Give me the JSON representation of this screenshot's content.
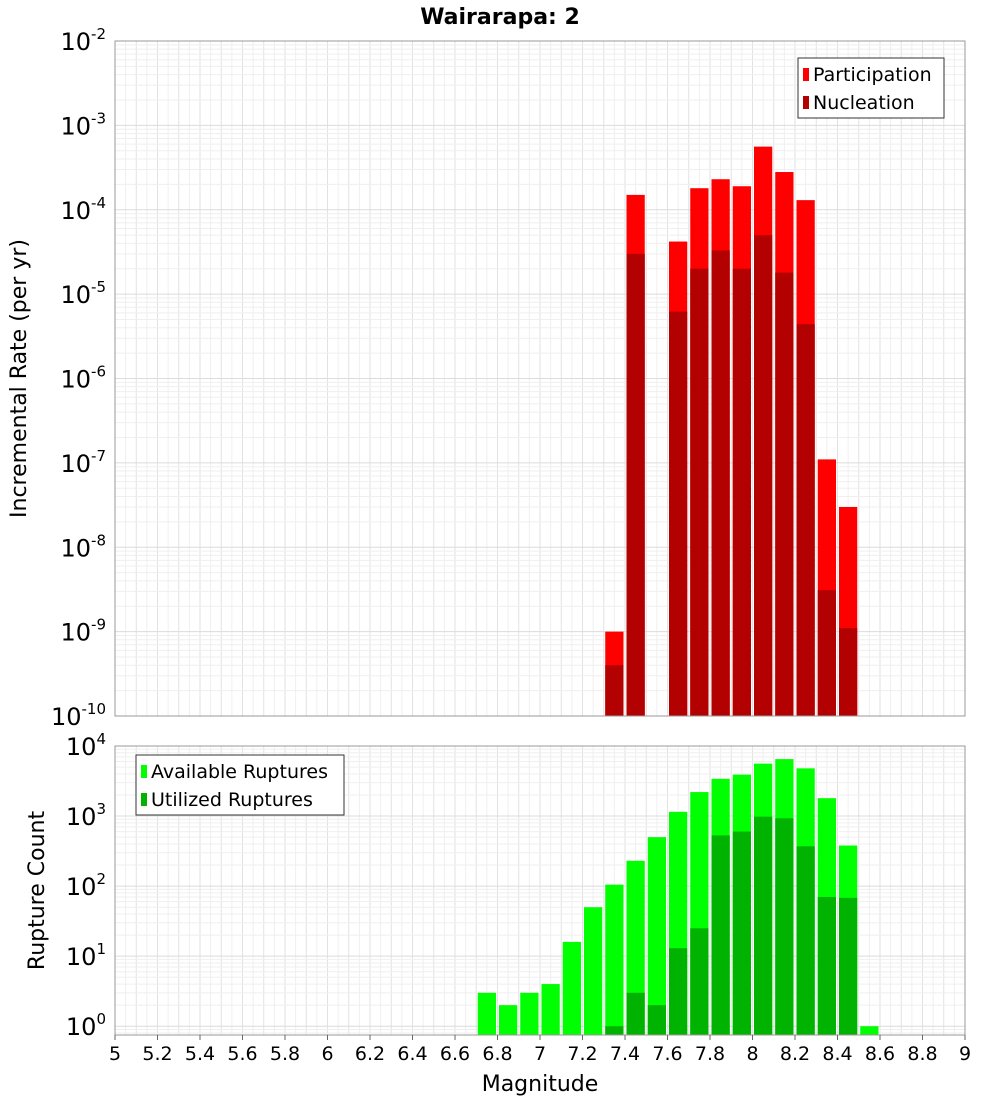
{
  "chart_data": [
    {
      "type": "bar",
      "title": "Wairarapa: 2",
      "xlabel": "",
      "ylabel": "Incremental Rate (per yr)",
      "yscale": "log",
      "ylim": [
        1e-10,
        0.01
      ],
      "ytick_exponents": [
        "-10",
        "-9",
        "-8",
        "-7",
        "-6",
        "-5",
        "-4",
        "-3",
        "-2"
      ],
      "ytick_base": "10",
      "xlim": [
        5,
        9
      ],
      "bin_width": 0.1,
      "grid": true,
      "legend_position": "top-right",
      "series": [
        {
          "name": "Participation",
          "color": "#ff0000",
          "points": [
            {
              "x": 7.35,
              "y": 1e-09
            },
            {
              "x": 7.45,
              "y": 0.00015
            },
            {
              "x": 7.65,
              "y": 4.2e-05
            },
            {
              "x": 7.75,
              "y": 0.00018
            },
            {
              "x": 7.85,
              "y": 0.00023
            },
            {
              "x": 7.95,
              "y": 0.00019
            },
            {
              "x": 8.05,
              "y": 0.00056
            },
            {
              "x": 8.15,
              "y": 0.00028
            },
            {
              "x": 8.25,
              "y": 0.00013
            },
            {
              "x": 8.35,
              "y": 1.1e-07
            },
            {
              "x": 8.45,
              "y": 3e-08
            }
          ]
        },
        {
          "name": "Nucleation",
          "color": "#b30000",
          "points": [
            {
              "x": 7.35,
              "y": 4e-10
            },
            {
              "x": 7.45,
              "y": 3e-05
            },
            {
              "x": 7.65,
              "y": 6.2e-06
            },
            {
              "x": 7.75,
              "y": 2e-05
            },
            {
              "x": 7.85,
              "y": 3.3e-05
            },
            {
              "x": 7.95,
              "y": 2e-05
            },
            {
              "x": 8.05,
              "y": 5e-05
            },
            {
              "x": 8.15,
              "y": 1.8e-05
            },
            {
              "x": 8.25,
              "y": 4.4e-06
            },
            {
              "x": 8.35,
              "y": 3.1e-09
            },
            {
              "x": 8.45,
              "y": 1.1e-09
            }
          ]
        }
      ]
    },
    {
      "type": "bar",
      "title": "",
      "xlabel": "Magnitude",
      "ylabel": "Rupture Count",
      "yscale": "log",
      "ylim": [
        0.75,
        10000
      ],
      "ytick_exponents": [
        "0",
        "1",
        "2",
        "3",
        "4"
      ],
      "ytick_base": "10",
      "xlim": [
        5,
        9
      ],
      "xticks": [
        "5",
        "5.2",
        "5.4",
        "5.6",
        "5.8",
        "6",
        "6.2",
        "6.4",
        "6.6",
        "6.8",
        "7",
        "7.2",
        "7.4",
        "7.6",
        "7.8",
        "8",
        "8.2",
        "8.4",
        "8.6",
        "8.8",
        "9"
      ],
      "bin_width": 0.1,
      "grid": true,
      "legend_position": "top-left",
      "series": [
        {
          "name": "Available Ruptures",
          "color": "#00ff00",
          "points": [
            {
              "x": 6.75,
              "y": 3
            },
            {
              "x": 6.85,
              "y": 2
            },
            {
              "x": 6.95,
              "y": 3
            },
            {
              "x": 7.05,
              "y": 4
            },
            {
              "x": 7.15,
              "y": 16
            },
            {
              "x": 7.25,
              "y": 50
            },
            {
              "x": 7.35,
              "y": 105
            },
            {
              "x": 7.45,
              "y": 230
            },
            {
              "x": 7.55,
              "y": 500
            },
            {
              "x": 7.65,
              "y": 1150
            },
            {
              "x": 7.75,
              "y": 2200
            },
            {
              "x": 7.85,
              "y": 3400
            },
            {
              "x": 7.95,
              "y": 3900
            },
            {
              "x": 8.05,
              "y": 5600
            },
            {
              "x": 8.15,
              "y": 6500
            },
            {
              "x": 8.25,
              "y": 4800
            },
            {
              "x": 8.35,
              "y": 1800
            },
            {
              "x": 8.45,
              "y": 380
            },
            {
              "x": 8.55,
              "y": 1
            }
          ]
        },
        {
          "name": "Utilized Ruptures",
          "color": "#00b300",
          "points": [
            {
              "x": 7.35,
              "y": 1
            },
            {
              "x": 7.45,
              "y": 3
            },
            {
              "x": 7.55,
              "y": 2
            },
            {
              "x": 7.65,
              "y": 13
            },
            {
              "x": 7.75,
              "y": 25
            },
            {
              "x": 7.85,
              "y": 530
            },
            {
              "x": 7.95,
              "y": 600
            },
            {
              "x": 8.05,
              "y": 980
            },
            {
              "x": 8.15,
              "y": 930
            },
            {
              "x": 8.25,
              "y": 370
            },
            {
              "x": 8.35,
              "y": 70
            },
            {
              "x": 8.45,
              "y": 68
            }
          ]
        }
      ]
    }
  ]
}
